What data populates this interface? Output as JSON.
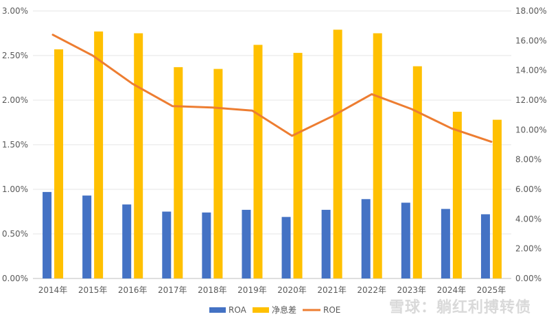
{
  "chart_data": {
    "type": "bar",
    "categories": [
      "2014年",
      "2015年",
      "2016年",
      "2017年",
      "2018年",
      "2019年",
      "2020年",
      "2021年",
      "2022年",
      "2023年",
      "2024年",
      "2025年"
    ],
    "series": [
      {
        "name": "ROA",
        "type": "bar",
        "axis": "left",
        "color": "#4472c4",
        "values": [
          0.97,
          0.93,
          0.83,
          0.75,
          0.74,
          0.77,
          0.69,
          0.77,
          0.89,
          0.85,
          0.78,
          0.72
        ]
      },
      {
        "name": "净息差",
        "type": "bar",
        "axis": "left",
        "color": "#ffc000",
        "values": [
          2.57,
          2.77,
          2.75,
          2.37,
          2.35,
          2.62,
          2.53,
          2.79,
          2.75,
          2.38,
          1.87,
          1.78
        ]
      },
      {
        "name": "ROE",
        "type": "line",
        "axis": "right",
        "color": "#ed7d31",
        "values": [
          16.4,
          15.0,
          13.1,
          11.6,
          11.5,
          11.3,
          9.6,
          10.9,
          12.4,
          11.4,
          10.1,
          9.2
        ]
      }
    ],
    "y_left": {
      "ylim": [
        0,
        3
      ],
      "ticks": [
        "0.00%",
        "0.50%",
        "1.00%",
        "1.50%",
        "2.00%",
        "2.50%",
        "3.00%"
      ]
    },
    "y_right": {
      "ylim": [
        0,
        18
      ],
      "ticks": [
        "0.00%",
        "2.00%",
        "4.00%",
        "6.00%",
        "8.00%",
        "10.00%",
        "12.00%",
        "14.00%",
        "16.00%",
        "18.00%"
      ]
    },
    "grid": true,
    "legend_position": "bottom"
  },
  "watermark": "雪球：躺红利搏转债"
}
